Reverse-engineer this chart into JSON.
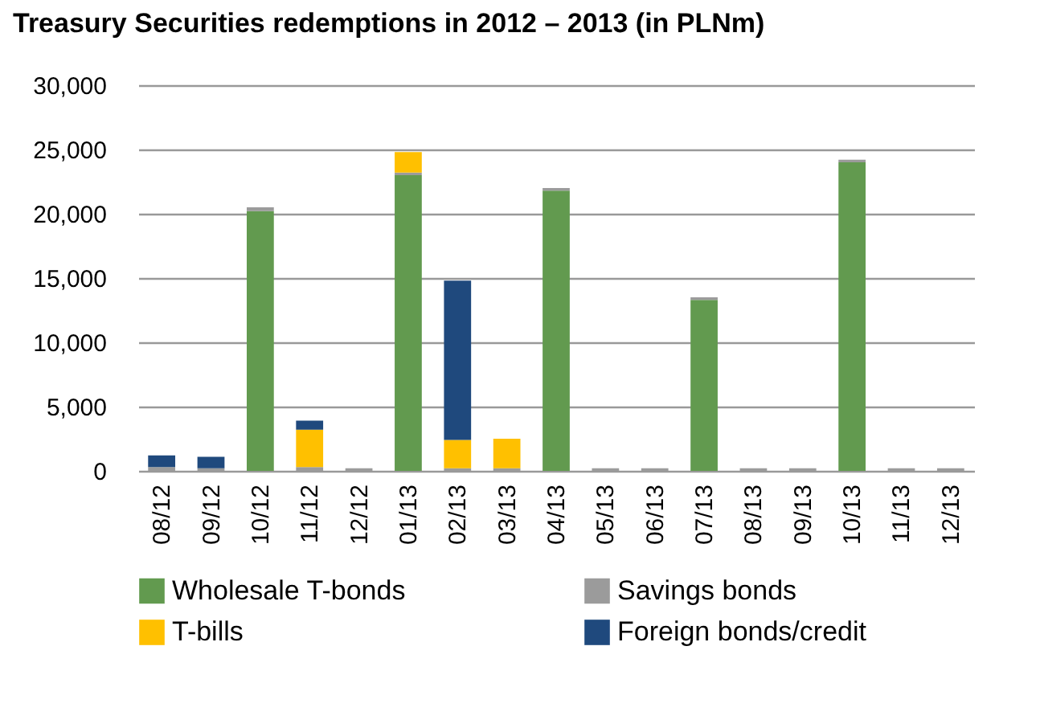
{
  "chart_data": {
    "type": "bar",
    "title": "Treasury Securities redemptions in 2012 – 2013 (in PLNm)",
    "stacked": true,
    "categories": [
      "08/12",
      "09/12",
      "10/12",
      "11/12",
      "12/12",
      "01/13",
      "02/13",
      "03/13",
      "04/13",
      "05/13",
      "06/13",
      "07/13",
      "08/13",
      "09/13",
      "10/13",
      "11/13",
      "12/13"
    ],
    "series": [
      {
        "name": "Wholesale T-bonds",
        "color": "#629a4f",
        "values": [
          0,
          0,
          20200,
          0,
          0,
          23000,
          0,
          0,
          21800,
          0,
          0,
          13300,
          0,
          0,
          24000,
          0,
          0
        ]
      },
      {
        "name": "Savings bonds",
        "color": "#9b9b9b",
        "values": [
          300,
          200,
          300,
          300,
          200,
          200,
          200,
          200,
          200,
          200,
          200,
          200,
          200,
          200,
          200,
          200,
          200
        ]
      },
      {
        "name": "T-bills",
        "color": "#ffc000",
        "values": [
          0,
          0,
          0,
          2900,
          0,
          1600,
          2200,
          2300,
          0,
          0,
          0,
          0,
          0,
          0,
          0,
          0,
          0
        ]
      },
      {
        "name": "Foreign bonds/credit",
        "color": "#1f497d",
        "values": [
          900,
          900,
          0,
          700,
          0,
          0,
          12400,
          0,
          0,
          0,
          0,
          0,
          0,
          0,
          0,
          0,
          0
        ]
      }
    ],
    "ylim": [
      0,
      30000
    ],
    "yticks": [
      {
        "value": 0,
        "label": "0"
      },
      {
        "value": 5000,
        "label": "5,000"
      },
      {
        "value": 10000,
        "label": "10,000"
      },
      {
        "value": 15000,
        "label": "15,000"
      },
      {
        "value": 20000,
        "label": "20,000"
      },
      {
        "value": 25000,
        "label": "25,000"
      },
      {
        "value": 30000,
        "label": "30,000"
      }
    ],
    "grid": "y",
    "legend": "bottom"
  }
}
